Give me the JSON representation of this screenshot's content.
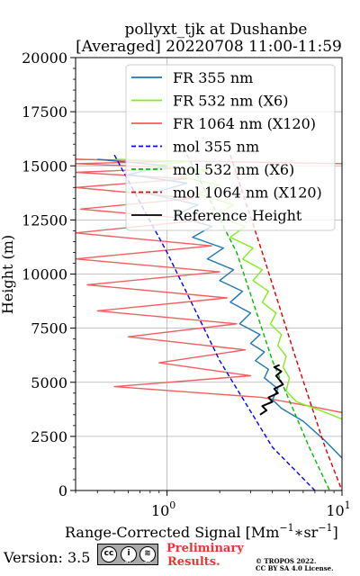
{
  "chart_data": {
    "type": "line",
    "title_line1": "pollyxt_tjk at Dushanbe",
    "title_line2": "[Averaged] 20220708 11:00-11:59",
    "xlabel": "Range-Corrected Signal [Mm",
    "xlabel_exp1": "−1",
    "xlabel_mid": "∗sr",
    "xlabel_exp2": "−1",
    "xlabel_end": "]",
    "ylabel": "Height (m)",
    "xscale": "log",
    "xlim": [
      0.3,
      10
    ],
    "ylim": [
      0,
      20000
    ],
    "grid": true,
    "legend_placement": "top-right",
    "x_tick_labels": [
      {
        "x": 1,
        "base": "10",
        "exp": "0"
      },
      {
        "x": 10,
        "base": "10",
        "exp": "1"
      }
    ],
    "y_ticks": [
      0,
      2500,
      5000,
      7500,
      10000,
      12500,
      15000,
      17500,
      20000
    ],
    "legend": [
      {
        "label": "FR 355 nm",
        "color": "#1f77b4",
        "style": "solid"
      },
      {
        "label": "FR 532 nm (X6)",
        "color": "#80ee1a",
        "style": "solid"
      },
      {
        "label": "FR 1064 nm (X120)",
        "color": "#f06060",
        "style": "solid"
      },
      {
        "label": "mol 355 nm",
        "color": "#0000ff",
        "style": "dashed"
      },
      {
        "label": "mol 532 nm (X6)",
        "color": "#00bb00",
        "style": "dashed"
      },
      {
        "label": "mol 1064 nm (X120)",
        "color": "#dd0000",
        "style": "dashed"
      },
      {
        "label": "Reference Height",
        "color": "#000000",
        "style": "solid"
      }
    ],
    "series": [
      {
        "name": "mol 355 nm",
        "color": "#0000ff",
        "style": "dashed",
        "x": [
          0.5,
          1.0,
          2.0,
          4.0,
          7.0
        ],
        "y": [
          15500,
          11000,
          6000,
          2000,
          0
        ]
      },
      {
        "name": "mol 532 nm (X6)",
        "color": "#00bb00",
        "style": "dashed",
        "x": [
          1.3,
          2.5,
          4.0,
          6.5,
          8.5
        ],
        "y": [
          15500,
          11000,
          6000,
          2000,
          0
        ]
      },
      {
        "name": "mol 1064 nm (X120)",
        "color": "#dd0000",
        "style": "dashed",
        "x": [
          2.3,
          3.5,
          5.5,
          8.0,
          10.0
        ],
        "y": [
          15500,
          11000,
          6000,
          2000,
          0
        ]
      },
      {
        "name": "FR 355 nm",
        "color": "#1f77b4",
        "style": "solid",
        "x": [
          10.0,
          8.0,
          6.0,
          4.5,
          4.0,
          4.3,
          3.6,
          3.8,
          3.2,
          3.6,
          3.0,
          3.4,
          2.6,
          3.0,
          2.3,
          2.7,
          2.0,
          2.4,
          1.7,
          2.1,
          1.4,
          1.8,
          1.1,
          1.5,
          0.8,
          1.3,
          0.6,
          1.0,
          0.4
        ],
        "y": [
          1500,
          2300,
          3200,
          3800,
          4200,
          4700,
          5200,
          5600,
          6000,
          6400,
          6800,
          7200,
          7700,
          8200,
          8700,
          9200,
          9700,
          10200,
          10700,
          11200,
          11700,
          12200,
          12700,
          13200,
          13700,
          14200,
          14600,
          15000,
          15300
        ]
      },
      {
        "name": "FR 532 nm (X6)",
        "color": "#80ee1a",
        "style": "solid",
        "x": [
          10.0,
          7.5,
          5.5,
          4.8,
          5.0,
          4.6,
          4.8,
          4.3,
          4.5,
          3.9,
          4.2,
          3.5,
          3.8,
          3.1,
          3.5,
          2.7,
          3.1,
          2.3,
          2.8,
          1.9,
          2.4,
          1.5,
          2.0,
          1.2,
          1.7,
          0.8,
          1.3,
          0.5
        ],
        "y": [
          3300,
          3700,
          4100,
          4600,
          5200,
          5700,
          6200,
          6700,
          7200,
          7700,
          8200,
          8700,
          9200,
          9700,
          10200,
          10700,
          11200,
          11700,
          12200,
          12700,
          13200,
          13700,
          14100,
          14500,
          14800,
          15000,
          15200,
          15300
        ]
      },
      {
        "name": "FR 1064 nm (X120)",
        "color": "#f06060",
        "style": "solid",
        "x": [
          10.0,
          6.5,
          3.5,
          0.5,
          3.0,
          0.9,
          2.8,
          0.6,
          2.5,
          0.4,
          2.2,
          0.35,
          2.0,
          0.3,
          1.8,
          0.3,
          1.6,
          0.32,
          1.4,
          0.3,
          1.3,
          0.3,
          1.2,
          0.3,
          1.1,
          0.3,
          10.0
        ],
        "y": [
          3600,
          3900,
          4300,
          4800,
          5300,
          5900,
          6500,
          7100,
          7700,
          8300,
          8900,
          9500,
          10100,
          10700,
          11300,
          11900,
          12500,
          13000,
          13500,
          14000,
          14400,
          14700,
          14900,
          15100,
          15200,
          15300,
          15100
        ]
      },
      {
        "name": "Reference Height",
        "color": "#000000",
        "style": "solid",
        "x": [
          3.4,
          3.7,
          3.5,
          4.0,
          3.8,
          4.3,
          4.1,
          4.6,
          4.4,
          4.2,
          4.5,
          4.1,
          4.4
        ],
        "y": [
          3500,
          3700,
          3900,
          4100,
          4300,
          4500,
          4700,
          4900,
          5100,
          5300,
          5500,
          5700,
          5800
        ]
      }
    ]
  },
  "footer": {
    "version": "Version: 3.5",
    "cc_badge": [
      "cc",
      "i",
      "≋"
    ],
    "cc_mini": [
      "BY",
      "SA"
    ],
    "preliminary": "Preliminary",
    "results": "Results.",
    "copyright_line1": "© TROPOS 2022.",
    "copyright_line2": "CC BY SA 4.0 License."
  }
}
